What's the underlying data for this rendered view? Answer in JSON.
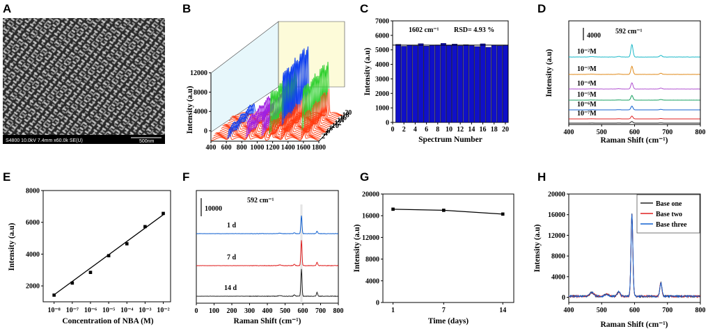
{
  "panels": {
    "A": {
      "label": "A",
      "sem_info_left": "S4800 10.0kV 7.4mm x60.0k SE(U)",
      "sem_scale": "500nm"
    },
    "B": {
      "label": "B",
      "ylabel": "Intensity (a.u)",
      "x_ticks": [
        "400",
        "600",
        "800",
        "1000",
        "1200",
        "1400",
        "1600",
        "1800"
      ],
      "y_ticks": [
        "0",
        "4000",
        "8000",
        "12000"
      ],
      "depth_ticks": [
        "2",
        "4",
        "6",
        "8",
        "10",
        "12",
        "14",
        "16",
        "18",
        "20"
      ]
    },
    "C": {
      "label": "C",
      "annotation_peak": "1602 cm⁻¹",
      "annotation_rsd": "RSD= 4.93 %",
      "xlabel": "Spectrum Number",
      "ylabel": "Intensity (a.u)",
      "x_ticks": [
        "0",
        "2",
        "4",
        "6",
        "8",
        "10",
        "12",
        "14",
        "16",
        "18",
        "20"
      ],
      "y_ticks": [
        "0",
        "1000",
        "2000",
        "3000",
        "4000",
        "5000",
        "6000",
        "7000"
      ]
    },
    "D": {
      "label": "D",
      "scale_label": "4000",
      "peak_label": "592 cm⁻¹",
      "xlabel": "Raman Shift (cm⁻¹)",
      "ylabel": "Intensity (a.u)",
      "x_ticks": [
        "400",
        "500",
        "600",
        "700",
        "800"
      ],
      "concentrations": [
        "10⁻²M",
        "10⁻³M",
        "10⁻⁴M",
        "10⁻⁵M",
        "10⁻⁶M",
        "10⁻⁷M"
      ]
    },
    "E": {
      "label": "E",
      "xlabel": "Concentration of NBA (M)",
      "ylabel": "Intensity (a.u)",
      "x_ticks": [
        "10⁻⁸",
        "10⁻⁷",
        "10⁻⁶",
        "10⁻⁵",
        "10⁻⁴",
        "10⁻³",
        "10⁻²"
      ],
      "y_ticks": [
        "2000",
        "4000",
        "6000",
        "8000"
      ]
    },
    "F": {
      "label": "F",
      "scale_label": "10000",
      "peak_label": "592 cm⁻¹",
      "xlabel": "Raman Shift (cm⁻¹)",
      "x_ticks": [
        "0",
        "100",
        "200",
        "300",
        "400",
        "500",
        "600",
        "700",
        "800"
      ],
      "day_labels": [
        "1 d",
        "7 d",
        "14 d"
      ]
    },
    "G": {
      "label": "G",
      "xlabel": "Time (days)",
      "ylabel": "Intensity (a.u)",
      "x_ticks": [
        "1",
        "7",
        "14"
      ],
      "y_ticks": [
        "0",
        "4000",
        "8000",
        "12000",
        "16000",
        "20000"
      ]
    },
    "H": {
      "label": "H",
      "xlabel": "Raman Shift (cm⁻¹)",
      "ylabel": "Intensity (a.u)",
      "x_ticks": [
        "400",
        "500",
        "600",
        "700",
        "800"
      ],
      "y_ticks": [
        "0",
        "4000",
        "8000",
        "12000",
        "16000",
        "20000"
      ],
      "legend": [
        "Base one",
        "Base two",
        "Base three"
      ]
    }
  },
  "colors": {
    "bar_blue": "#1010c8",
    "cyan": "#1ab8c8",
    "orange": "#e08a1a",
    "purple": "#b050d0",
    "green": "#18a060",
    "blue": "#1060d0",
    "red": "#e02020",
    "black": "#222222",
    "lime": "#30d030",
    "violet": "#a020e0"
  },
  "chart_data": [
    {
      "type": "bar",
      "panel": "C",
      "title": "",
      "categories": [
        1,
        2,
        3,
        4,
        5,
        6,
        7,
        8,
        9,
        10,
        11,
        12,
        13,
        14,
        15,
        16,
        17,
        18,
        19,
        20
      ],
      "values": [
        5380,
        5250,
        5330,
        5290,
        5430,
        5260,
        5310,
        5340,
        5450,
        5310,
        5400,
        5290,
        5360,
        5300,
        5230,
        5420,
        5180,
        5320,
        5290,
        5310
      ],
      "xlabel": "Spectrum Number",
      "ylabel": "Intensity (a.u)",
      "xlim": [
        0,
        20.5
      ],
      "ylim": [
        0,
        7000
      ]
    },
    {
      "type": "scatter",
      "panel": "E",
      "x_log10": [
        -8,
        -7,
        -6,
        -5,
        -4,
        -3,
        -2
      ],
      "y": [
        1420,
        2180,
        2850,
        3900,
        4650,
        5730,
        6560
      ],
      "fit_line": {
        "x_log10": [
          -8.05,
          -1.95
        ],
        "y": [
          1400,
          6520
        ]
      },
      "xlabel": "Concentration of NBA (M)",
      "ylabel": "Intensity (a.u)",
      "ylim": [
        1000,
        8000
      ]
    },
    {
      "type": "line",
      "panel": "G",
      "x": [
        1,
        7,
        14
      ],
      "y": [
        17200,
        17000,
        16300
      ],
      "xlabel": "Time (days)",
      "ylabel": "Intensity (a.u)",
      "ylim": [
        0,
        20000
      ]
    },
    {
      "type": "line",
      "panel": "H",
      "series_names": [
        "Base one",
        "Base two",
        "Base three"
      ],
      "peaks": [
        {
          "center": 592,
          "height": 17000
        },
        {
          "center": 680,
          "height": 2600
        }
      ],
      "xlabel": "Raman Shift (cm⁻¹)",
      "ylabel": "Intensity (a.u)",
      "xlim": [
        400,
        800
      ],
      "ylim": [
        -1000,
        20000
      ]
    },
    {
      "type": "line",
      "panel": "D",
      "series_names": [
        "10⁻²M",
        "10⁻³M",
        "10⁻⁴M",
        "10⁻⁵M",
        "10⁻⁶M",
        "10⁻⁷M"
      ],
      "peak_heights": [
        4000,
        2600,
        2000,
        1500,
        1200,
        900
      ],
      "xlim": [
        400,
        800
      ]
    },
    {
      "type": "line",
      "panel": "F",
      "series_names": [
        "1 d",
        "7 d",
        "14 d"
      ],
      "peak_heights": [
        10000,
        14000,
        15000
      ],
      "xlim": [
        0,
        800
      ]
    },
    {
      "type": "line",
      "panel": "B",
      "series_count": 20,
      "xlim": [
        400,
        1800
      ],
      "ylim": [
        0,
        12000
      ]
    }
  ]
}
